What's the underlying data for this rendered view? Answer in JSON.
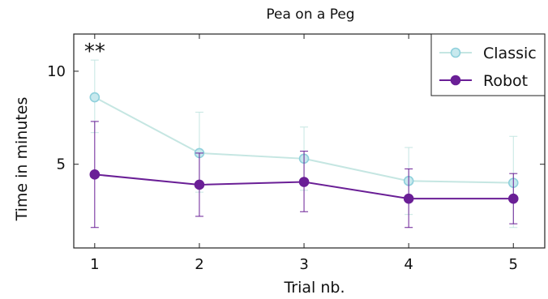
{
  "chart_data": {
    "type": "line",
    "title": "Pea on a Peg",
    "xlabel": "Trial nb.",
    "ylabel": "Time in minutes",
    "x": [
      1,
      2,
      3,
      4,
      5
    ],
    "xlim": [
      0.8,
      5.3
    ],
    "ylim": [
      0.5,
      12
    ],
    "xticks": [
      "1",
      "2",
      "3",
      "4",
      "5"
    ],
    "yticks": [
      {
        "value": 5,
        "label": "5"
      },
      {
        "value": 10,
        "label": "10"
      }
    ],
    "grid": false,
    "legend": "top-right",
    "series": [
      {
        "name": "Classic",
        "color": "#c5e6e2",
        "marker_fill": "#c8e9ee",
        "marker_edge": "#8fd0dc",
        "values": [
          8.6,
          5.6,
          5.3,
          4.1,
          4.0
        ],
        "err_low": [
          6.7,
          3.5,
          3.6,
          2.3,
          1.6
        ],
        "err_high": [
          10.6,
          7.8,
          7.0,
          5.9,
          6.5
        ]
      },
      {
        "name": "Robot",
        "color": "#6a1f96",
        "marker_fill": "#6a1f96",
        "marker_edge": "#6a1f96",
        "values": [
          4.45,
          3.9,
          4.05,
          3.15,
          3.15
        ],
        "err_low": [
          1.6,
          2.2,
          2.45,
          1.6,
          1.8
        ],
        "err_high": [
          7.3,
          5.6,
          5.7,
          4.75,
          4.5
        ]
      }
    ],
    "annotations": [
      {
        "text": "**",
        "x": 1,
        "y": 10.6
      }
    ]
  }
}
